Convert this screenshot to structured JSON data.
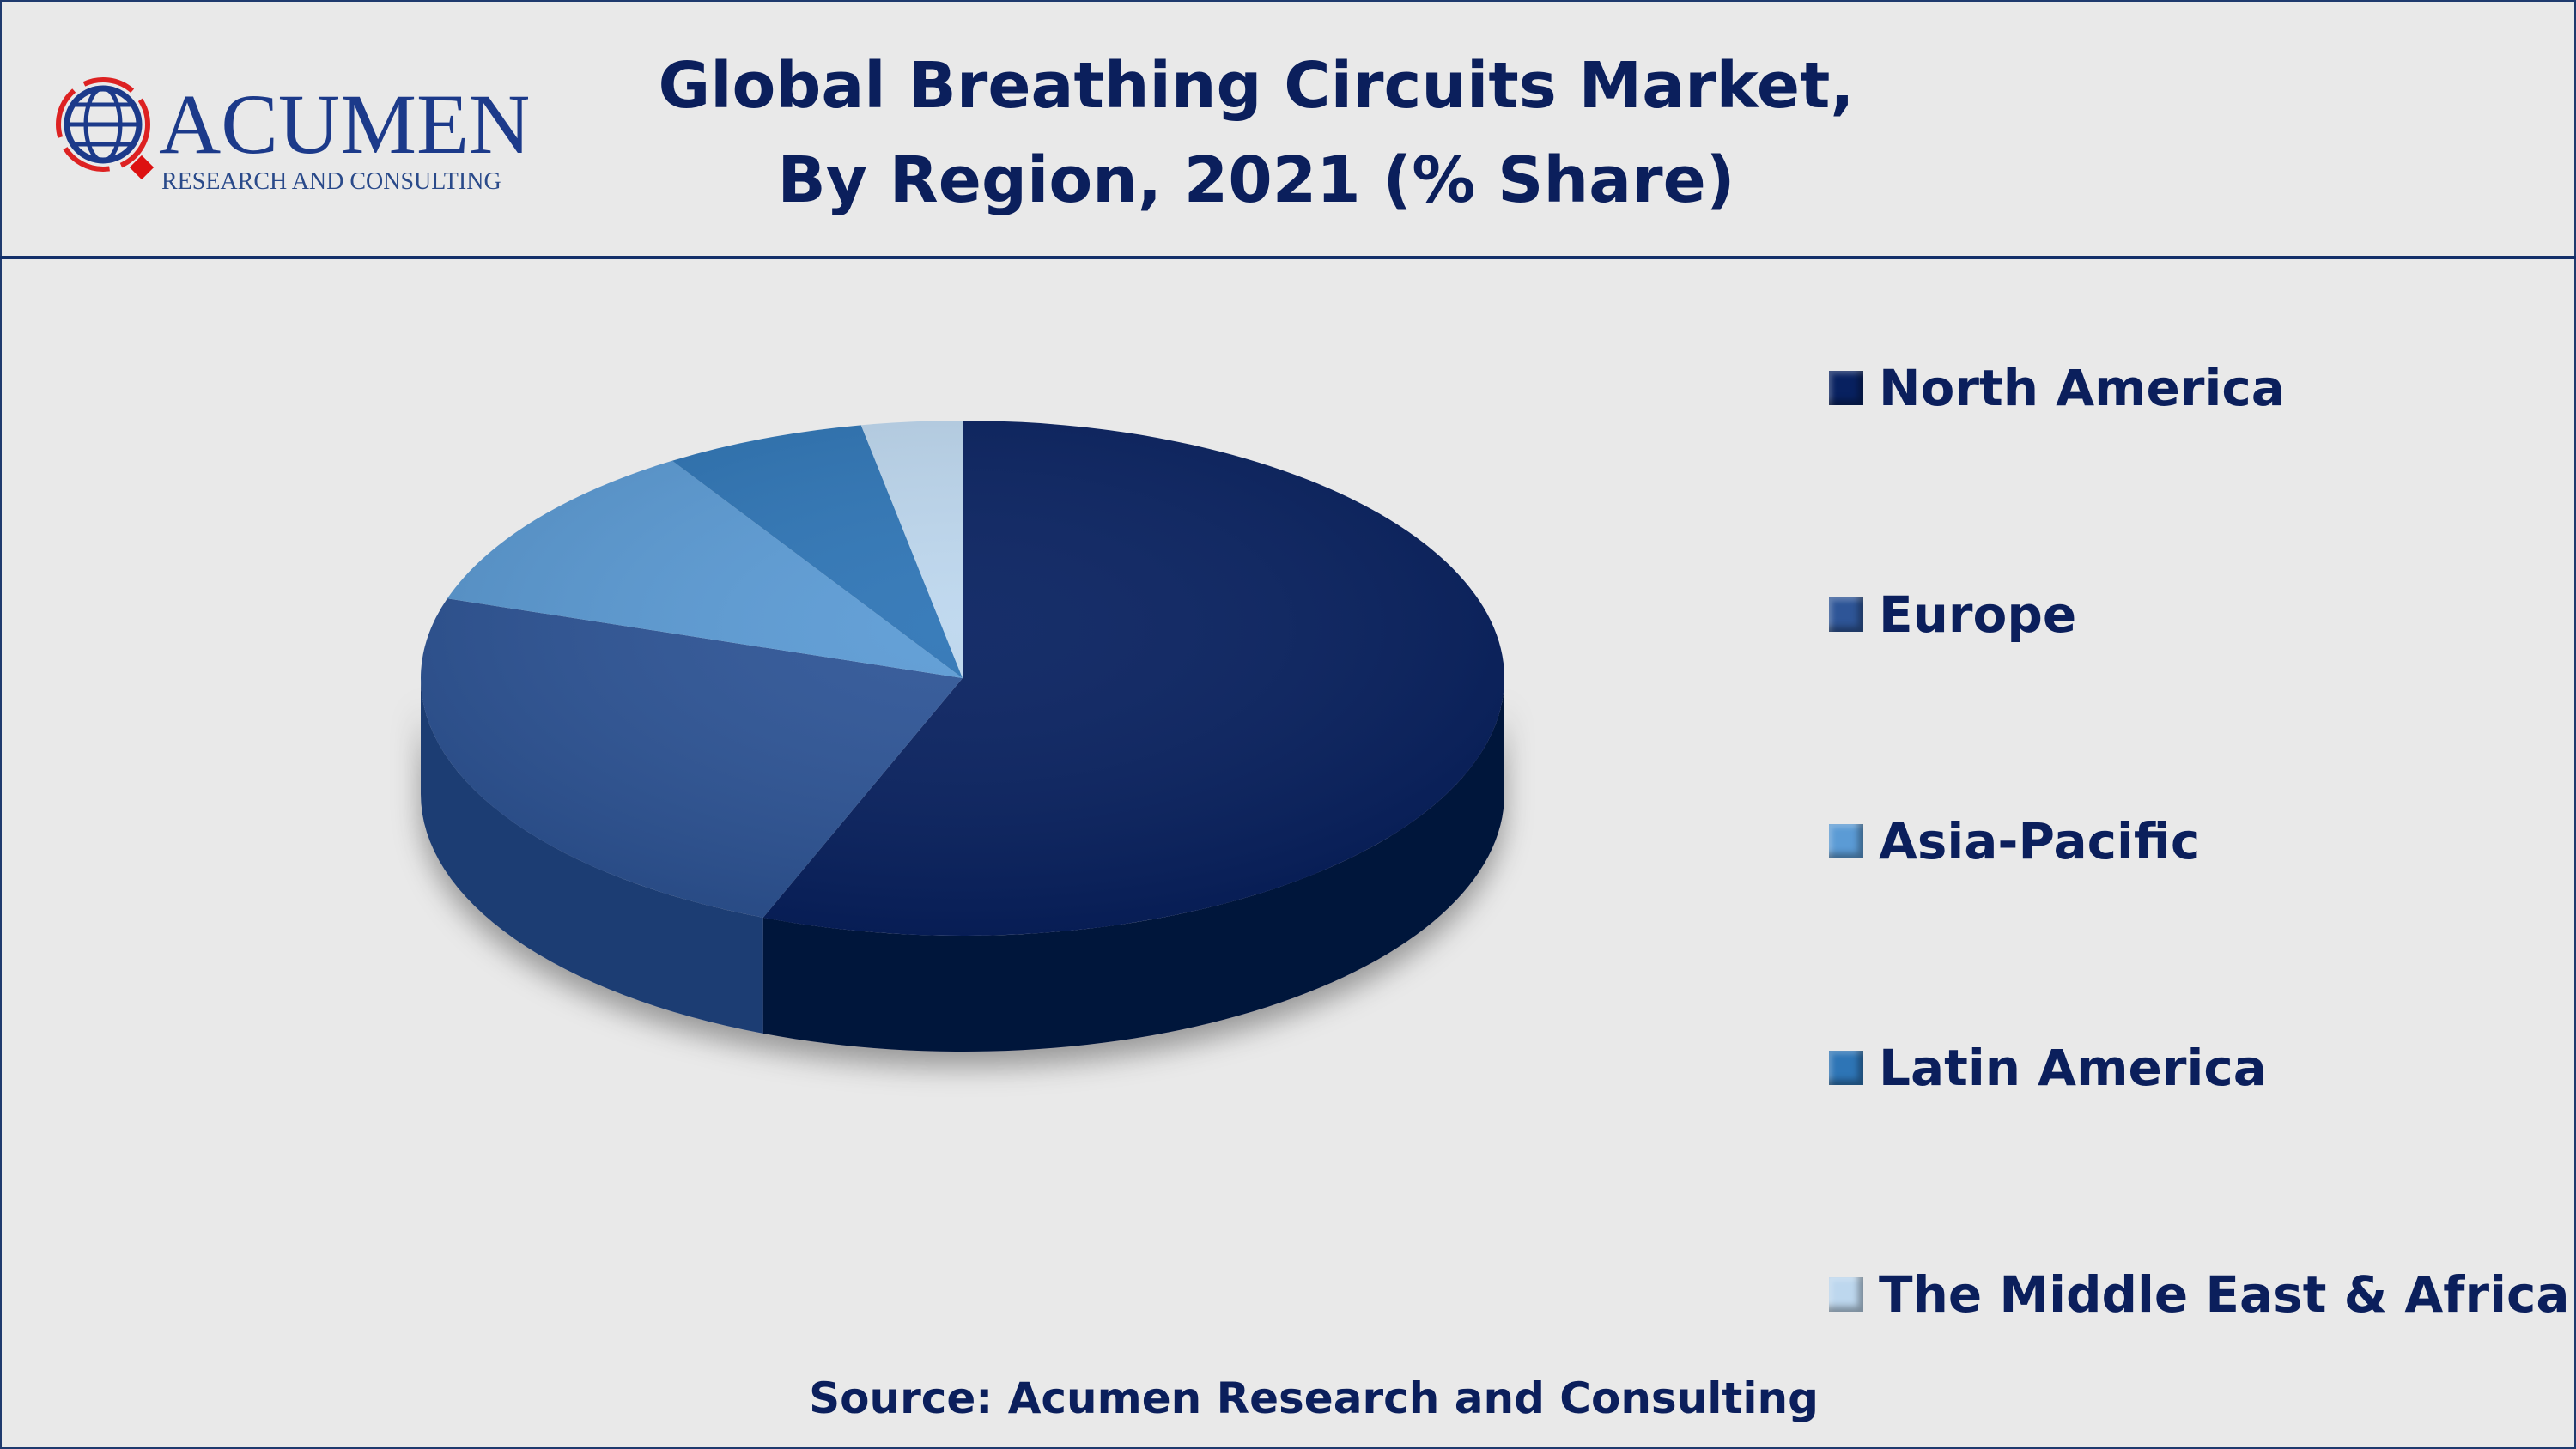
{
  "header": {
    "title_line1": "Global Breathing Circuits Market,",
    "title_line2": "By Region, 2021 (% Share)",
    "logo_text": "ACUMEN",
    "logo_subtext": "RESEARCH AND CONSULTING"
  },
  "chart_data": {
    "type": "pie",
    "title": "Global Breathing Circuits Market, By Region, 2021 (% Share)",
    "categories": [
      "North America",
      "Europe",
      "Asia-Pacific",
      "Latin America",
      "The Middle East & Africa"
    ],
    "values": [
      56,
      24,
      11,
      6,
      3
    ],
    "colors": [
      "#082160",
      "#2e5597",
      "#5b9bd5",
      "#2e75b6",
      "#bdd7ee"
    ],
    "side_colors": [
      "#04123a",
      "#1f3d73",
      "#3f78b0",
      "#1f568a",
      "#8fb0cc"
    ],
    "legend_position": "right",
    "style": "3d"
  },
  "footer": {
    "source": "Source: Acumen Research and Consulting"
  }
}
